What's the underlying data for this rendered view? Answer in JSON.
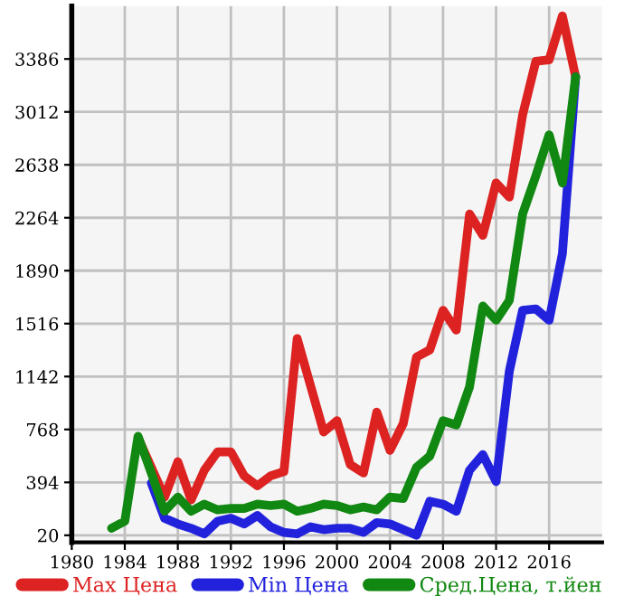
{
  "chart_data": {
    "type": "line",
    "x": [
      1983,
      1984,
      1985,
      1986,
      1987,
      1988,
      1989,
      1990,
      1991,
      1992,
      1993,
      1994,
      1995,
      1996,
      1997,
      1998,
      1999,
      2000,
      2001,
      2002,
      2003,
      2004,
      2005,
      2006,
      2007,
      2008,
      2009,
      2010,
      2011,
      2012,
      2013,
      2014,
      2015,
      2016,
      2017,
      2018
    ],
    "series": [
      {
        "name": "Max Цена",
        "color": "#dd2222",
        "values": [
          null,
          null,
          710,
          500,
          290,
          540,
          270,
          480,
          610,
          610,
          440,
          370,
          440,
          470,
          1410,
          1080,
          750,
          830,
          520,
          460,
          890,
          620,
          810,
          1280,
          1330,
          1610,
          1470,
          2290,
          2140,
          2510,
          2410,
          2990,
          3370,
          3380,
          3690,
          3260
        ]
      },
      {
        "name": "Min Цена",
        "color": "#2222dd",
        "values": [
          null,
          null,
          null,
          390,
          140,
          100,
          70,
          30,
          120,
          140,
          100,
          160,
          80,
          40,
          30,
          80,
          60,
          70,
          70,
          40,
          110,
          100,
          60,
          20,
          260,
          240,
          190,
          480,
          590,
          400,
          1180,
          1610,
          1620,
          1540,
          2010,
          3260
        ]
      },
      {
        "name": "Сред.Цена, т.йен",
        "color": "#118811",
        "values": [
          70,
          120,
          720,
          460,
          190,
          290,
          190,
          240,
          200,
          210,
          210,
          240,
          230,
          240,
          190,
          210,
          240,
          230,
          200,
          220,
          200,
          290,
          280,
          500,
          580,
          830,
          800,
          1070,
          1640,
          1540,
          1680,
          2290,
          2560,
          2850,
          2510,
          3260
        ]
      }
    ],
    "xlim": [
      1980,
      2020
    ],
    "xticks": [
      1980,
      1984,
      1988,
      1992,
      1996,
      2000,
      2004,
      2008,
      2012,
      2016
    ],
    "ylim": [
      -30,
      3760
    ],
    "yticks": [
      20,
      394,
      768,
      1142,
      1516,
      1890,
      2264,
      2638,
      3012,
      3386
    ],
    "grid": true,
    "legend": "bottom",
    "marker": "none",
    "line_style": "solid"
  }
}
